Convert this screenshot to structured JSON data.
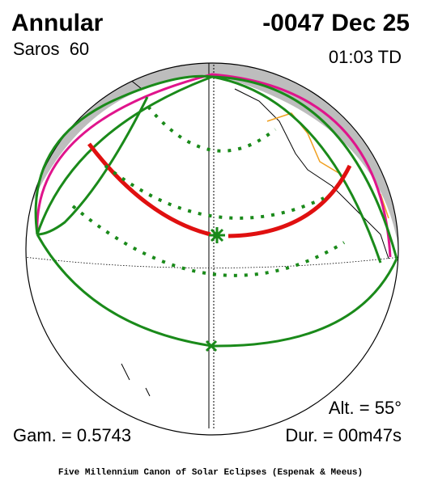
{
  "header": {
    "title": "Annular",
    "date": "-0047 Dec 25",
    "saros": "Saros  60",
    "time": "01:03 TD"
  },
  "footer": {
    "altitude": "Alt. = 55°",
    "gamma": "Gam. = 0.5743",
    "duration": "Dur. = 00m47s",
    "credit": "Five Millennium Canon of Solar Eclipses (Espenak & Meeus)"
  }
}
